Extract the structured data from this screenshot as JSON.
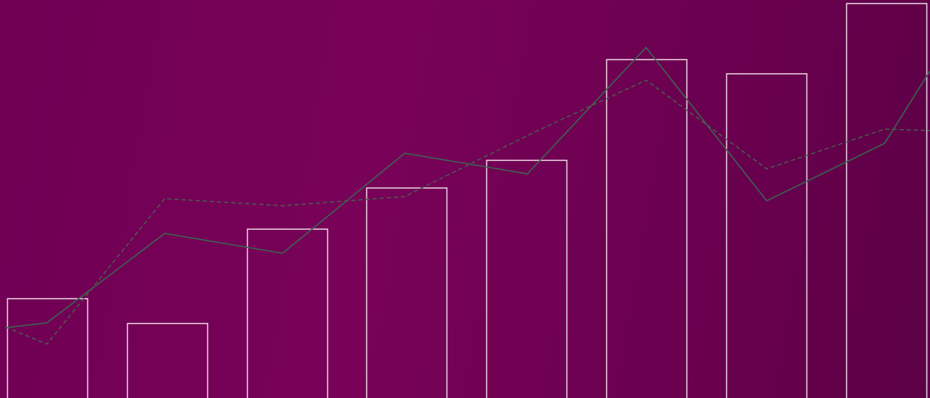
{
  "colors": {
    "background": "#730255",
    "bar_stroke": "#eed6e6",
    "solid_line": "#3f5e52",
    "dashed_line": "#46604f"
  },
  "chart_data": {
    "type": "bar",
    "title": "",
    "xlabel": "",
    "ylabel": "",
    "ylim": [
      0,
      561
    ],
    "grid": false,
    "legend": "none",
    "bars": {
      "values": [
        140,
        105,
        238,
        296,
        335,
        477,
        457,
        556
      ]
    },
    "lines": [
      {
        "style": "solid",
        "x": [
          8,
          66,
          232,
          398,
          570,
          743,
          910,
          1080,
          1246,
          1310
        ],
        "y": [
          99,
          106,
          232,
          204,
          345,
          316,
          494,
          278,
          359,
          461
        ]
      },
      {
        "style": "dashed",
        "x": [
          8,
          66,
          232,
          398,
          570,
          743,
          910,
          1080,
          1246,
          1310
        ],
        "y": [
          100,
          76,
          281,
          271,
          284,
          370,
          448,
          323,
          379,
          377
        ]
      }
    ]
  }
}
